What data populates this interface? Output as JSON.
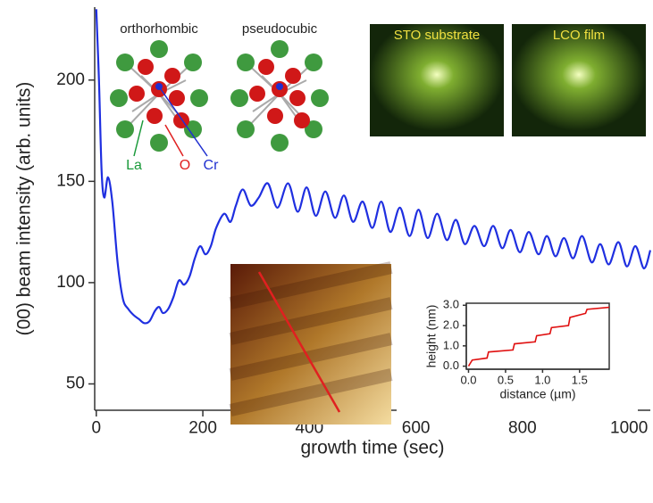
{
  "chart_data": [
    {
      "type": "line",
      "xlabel": "growth time (sec)",
      "ylabel": "(00) beam intensity (arb. units)",
      "xlim": [
        -3,
        1040
      ],
      "ylim": [
        37,
        236
      ],
      "xticks": [
        0,
        200,
        400,
        600,
        800,
        1000
      ],
      "yticks": [
        50,
        100,
        150,
        200
      ],
      "color": "#1f2fe0",
      "annotations": [
        "orthorhombic",
        "pseudocubic",
        "La",
        "O",
        "Cr",
        "STO substrate",
        "LCO film"
      ],
      "x": [
        0,
        5,
        10,
        15,
        22,
        30,
        40,
        50,
        60,
        70,
        80,
        90,
        100,
        110,
        118,
        125,
        135,
        145,
        155,
        165,
        175,
        185,
        195,
        205,
        215,
        225,
        240,
        252,
        262,
        275,
        290,
        305,
        322,
        340,
        360,
        378,
        395,
        412,
        430,
        448,
        465,
        482,
        500,
        518,
        535,
        552,
        570,
        588,
        605,
        622,
        640,
        658,
        675,
        692,
        710,
        728,
        745,
        762,
        778,
        795,
        812,
        830,
        846,
        862,
        878,
        895,
        912,
        930,
        946,
        962,
        980,
        996,
        1012,
        1028,
        1040
      ],
      "values": [
        235,
        200,
        155,
        142,
        152,
        140,
        110,
        92,
        87,
        84,
        82,
        80,
        81,
        86,
        88,
        85,
        87,
        93,
        101,
        99,
        103,
        112,
        118,
        114,
        118,
        127,
        134,
        130,
        138,
        146,
        138,
        142,
        149,
        137,
        149,
        135,
        147,
        133,
        145,
        132,
        143,
        130,
        140,
        127,
        140,
        125,
        137,
        123,
        136,
        122,
        134,
        121,
        131,
        119,
        128,
        118,
        128,
        117,
        126,
        115,
        125,
        114,
        123,
        113,
        122,
        112,
        123,
        110,
        119,
        109,
        120,
        108,
        118,
        107,
        116
      ]
    },
    {
      "type": "line",
      "xlabel": "distance (µm)",
      "ylabel": "height (nm)",
      "xlim": [
        -0.03,
        1.9
      ],
      "ylim": [
        -0.15,
        3.1
      ],
      "xticks": [
        {
          "value": 0,
          "label": "0.0"
        },
        {
          "value": 0.5,
          "label": "0.5"
        },
        {
          "value": 1,
          "label": "1.0"
        },
        {
          "value": 1.5,
          "label": "1.5"
        }
      ],
      "yticks": [
        {
          "value": 0,
          "label": "0.0"
        },
        {
          "value": 1,
          "label": "1.0"
        },
        {
          "value": 2,
          "label": "2.0"
        },
        {
          "value": 3,
          "label": "3.0"
        }
      ],
      "color": "#e01010",
      "x": [
        0,
        0.05,
        0.25,
        0.27,
        0.6,
        0.62,
        0.9,
        0.92,
        1.1,
        1.12,
        1.35,
        1.37,
        1.58,
        1.6,
        1.9
      ],
      "values": [
        0,
        0.3,
        0.4,
        0.7,
        0.8,
        1.1,
        1.2,
        1.5,
        1.6,
        1.9,
        2.0,
        2.4,
        2.6,
        2.8,
        2.9
      ]
    }
  ]
}
